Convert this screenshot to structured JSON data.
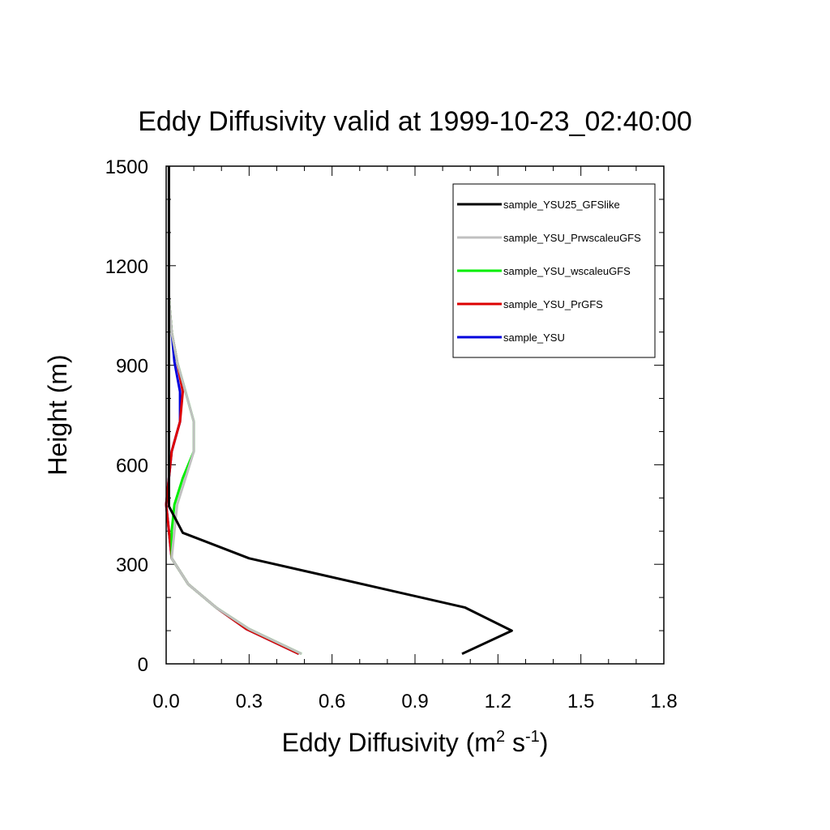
{
  "chart_data": {
    "type": "line",
    "title": "Eddy Diffusivity valid at 1999-10-23_02:40:00",
    "xlabel": {
      "base": "Eddy Diffusivity (m",
      "sup1": "2",
      "mid": " s",
      "sup2": "-1",
      "end": ")"
    },
    "ylabel": "Height (m)",
    "xlim": [
      0.0,
      1.8
    ],
    "ylim": [
      0,
      1500
    ],
    "xticks": [
      "0.0",
      "0.3",
      "0.6",
      "0.9",
      "1.2",
      "1.5",
      "1.8"
    ],
    "yticks": [
      "0",
      "300",
      "600",
      "900",
      "1200",
      "1500"
    ],
    "grid": false,
    "legend_position": "top-right",
    "series": [
      {
        "name": "sample_YSU25_GFSlike",
        "color": "#000000",
        "points": [
          [
            1.07,
            30
          ],
          [
            1.25,
            100
          ],
          [
            1.08,
            170
          ],
          [
            0.3,
            318
          ],
          [
            0.06,
            395
          ],
          [
            0.01,
            475
          ],
          [
            0.01,
            560
          ],
          [
            0.01,
            650
          ],
          [
            0.01,
            730
          ],
          [
            0.01,
            820
          ],
          [
            0.01,
            910
          ],
          [
            0.01,
            1000
          ],
          [
            0.01,
            1100
          ],
          [
            0.01,
            1200
          ],
          [
            0.01,
            1300
          ],
          [
            0.01,
            1400
          ],
          [
            0.01,
            1500
          ]
        ]
      },
      {
        "name": "sample_YSU_PrwscaleuGFS",
        "color": "#c0c0c0",
        "points": [
          [
            0.49,
            30
          ],
          [
            0.3,
            105
          ],
          [
            0.18,
            170
          ],
          [
            0.08,
            240
          ],
          [
            0.02,
            318
          ],
          [
            0.03,
            400
          ],
          [
            0.04,
            480
          ],
          [
            0.07,
            560
          ],
          [
            0.1,
            640
          ],
          [
            0.1,
            730
          ],
          [
            0.07,
            820
          ],
          [
            0.04,
            910
          ],
          [
            0.02,
            1000
          ],
          [
            0.01,
            1100
          ]
        ]
      },
      {
        "name": "sample_YSU_wscaleuGFS",
        "color": "#00ee00",
        "points": [
          [
            0.49,
            30
          ],
          [
            0.3,
            105
          ],
          [
            0.18,
            170
          ],
          [
            0.08,
            240
          ],
          [
            0.02,
            318
          ],
          [
            0.02,
            400
          ],
          [
            0.03,
            480
          ],
          [
            0.06,
            560
          ],
          [
            0.1,
            640
          ],
          [
            0.1,
            730
          ],
          [
            0.07,
            820
          ],
          [
            0.04,
            910
          ],
          [
            0.02,
            1000
          ],
          [
            0.01,
            1100
          ]
        ]
      },
      {
        "name": "sample_YSU_PrGFS",
        "color": "#dd0000",
        "points": [
          [
            0.48,
            30
          ],
          [
            0.29,
            105
          ],
          [
            0.18,
            170
          ],
          [
            0.08,
            240
          ],
          [
            0.02,
            318
          ],
          [
            0.01,
            400
          ],
          [
            0.0,
            480
          ],
          [
            0.01,
            560
          ],
          [
            0.02,
            640
          ],
          [
            0.05,
            730
          ],
          [
            0.06,
            820
          ],
          [
            0.04,
            910
          ],
          [
            0.02,
            1000
          ],
          [
            0.01,
            1100
          ]
        ]
      },
      {
        "name": "sample_YSU",
        "color": "#0000dd",
        "points": [
          [
            0.48,
            30
          ],
          [
            0.29,
            105
          ],
          [
            0.18,
            170
          ],
          [
            0.08,
            240
          ],
          [
            0.02,
            318
          ],
          [
            0.01,
            400
          ],
          [
            0.0,
            480
          ],
          [
            0.01,
            560
          ],
          [
            0.02,
            640
          ],
          [
            0.05,
            730
          ],
          [
            0.05,
            820
          ],
          [
            0.03,
            910
          ],
          [
            0.02,
            1000
          ],
          [
            0.01,
            1100
          ]
        ]
      }
    ]
  }
}
